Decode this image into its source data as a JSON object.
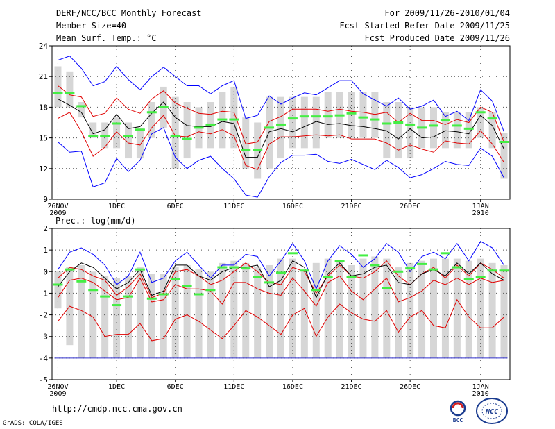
{
  "header": {
    "title": "DERF/NCC/BCC Monthly Forecast",
    "member_size": "Member Size=40",
    "variable": "Mean Surf. Temp.: °C",
    "period": "For 2009/11/26-2010/01/04",
    "started": "Fcst Started Refer Date 2009/11/25",
    "produced": "Fcst Produced Date 2009/11/26"
  },
  "precip_title": "Prec.: log(mm/d)",
  "footer": {
    "url": "http://cmdp.ncc.cma.gov.cn",
    "credit": "GrADS: COLA/IGES"
  },
  "logos": {
    "bcc": "BCC",
    "ncc": "NCC"
  },
  "colors": {
    "max_min": "#0000ff",
    "spread": "#e00000",
    "mean": "#000000",
    "obs": "#44ee44",
    "box": "#d6d6d6"
  },
  "chart_data": [
    {
      "type": "line",
      "title": "Mean Surf. Temp.: °C",
      "xlabel": "",
      "ylabel": "",
      "ylim": [
        9,
        24
      ],
      "yticks": [
        9,
        12,
        15,
        18,
        21,
        24
      ],
      "xlim": [
        0.5,
        39.5
      ],
      "xticks": [
        {
          "x": 0,
          "label": "26NOV",
          "sub": "2009"
        },
        {
          "x": 5,
          "label": "1DEC",
          "sub": ""
        },
        {
          "x": 10,
          "label": "6DEC",
          "sub": ""
        },
        {
          "x": 15,
          "label": "11DEC",
          "sub": ""
        },
        {
          "x": 20,
          "label": "16DEC",
          "sub": ""
        },
        {
          "x": 25,
          "label": "21DEC",
          "sub": ""
        },
        {
          "x": 30,
          "label": "26DEC",
          "sub": ""
        },
        {
          "x": 36,
          "label": "1JAN",
          "sub": "2010"
        }
      ],
      "grid": true,
      "boxes": {
        "low": [
          18,
          18,
          17,
          15,
          14,
          14,
          13,
          13,
          15,
          16,
          12,
          13,
          14,
          14,
          14,
          14,
          12,
          11,
          12,
          13,
          14,
          14,
          14,
          15,
          15,
          15,
          15,
          15,
          13,
          13,
          13,
          14,
          14,
          14,
          14,
          14,
          15,
          14,
          11
        ],
        "high": [
          22,
          21.5,
          18.5,
          16.5,
          16.5,
          17,
          16.5,
          16,
          18.5,
          20,
          19,
          18.5,
          18,
          18.5,
          19.5,
          20,
          17,
          16.5,
          19,
          19,
          19,
          19,
          19,
          19.5,
          19.5,
          19.5,
          19.5,
          19.5,
          18.5,
          18.5,
          18,
          18,
          18,
          17.5,
          17.5,
          17.5,
          18,
          17.5,
          15.5
        ]
      },
      "series": [
        {
          "name": "max",
          "color": "#0000ff",
          "values": [
            22.6,
            23,
            21.8,
            20.1,
            20.5,
            22,
            20.7,
            19.7,
            21,
            21.9,
            21,
            20.1,
            20.1,
            19.3,
            20.1,
            20.6,
            16.9,
            17.2,
            19.1,
            18.3,
            18.9,
            19.4,
            19.2,
            19.9,
            20.6,
            20.6,
            19.3,
            18.7,
            18.1,
            18.9,
            17.8,
            18.1,
            18.7,
            17.1,
            17.6,
            16.7,
            19.7,
            18.6,
            15.6
          ]
        },
        {
          "name": "upper",
          "color": "#e00000",
          "values": [
            20.1,
            19.2,
            19,
            17.1,
            17.4,
            18.9,
            17.8,
            17.4,
            18.8,
            19.6,
            18.4,
            17.9,
            17.4,
            17.3,
            17.6,
            17.5,
            14.4,
            14.6,
            16.6,
            17.1,
            17.8,
            17.8,
            17.8,
            17.6,
            17.8,
            17.6,
            17.5,
            17.3,
            17.5,
            16.5,
            17.4,
            16.7,
            16.7,
            16.3,
            16.8,
            16.5,
            18,
            17.5,
            14.6
          ]
        },
        {
          "name": "mean",
          "color": "#000000",
          "values": [
            18.8,
            18.2,
            17.5,
            15.4,
            15.8,
            17.3,
            15.9,
            16.1,
            17.4,
            18.5,
            17,
            16.2,
            16.1,
            16.1,
            16.6,
            16.4,
            13.1,
            13.1,
            15.6,
            15.9,
            15.6,
            16.1,
            16.6,
            16.3,
            16.4,
            16.2,
            16.1,
            15.9,
            15.7,
            14.9,
            15.9,
            15,
            15.1,
            15.7,
            15.6,
            15.4,
            17.2,
            16.2,
            13.9
          ]
        },
        {
          "name": "lower",
          "color": "#e00000",
          "values": [
            16.9,
            17.5,
            15.6,
            13.2,
            14.1,
            15.6,
            14.5,
            14.3,
            16,
            17.2,
            15.2,
            15.1,
            15.6,
            15.4,
            15.8,
            15.2,
            12.3,
            11.9,
            14.4,
            15.1,
            15.1,
            15.2,
            15.3,
            15.2,
            15.3,
            14.9,
            14.9,
            14.9,
            14.5,
            13.8,
            14.3,
            13.9,
            13.6,
            14.7,
            14.5,
            14.4,
            15.7,
            14.4,
            12.6
          ]
        },
        {
          "name": "min",
          "color": "#0000ff",
          "values": [
            14.6,
            13.6,
            13.7,
            10.2,
            10.6,
            13,
            11.7,
            12.8,
            15.4,
            16,
            13.1,
            12,
            12.8,
            13.2,
            12,
            11,
            9.4,
            9.2,
            11.2,
            12.6,
            13.3,
            13.3,
            13.4,
            12.7,
            12.5,
            12.9,
            12.4,
            11.9,
            12.8,
            12.1,
            11.1,
            11.4,
            12,
            12.7,
            12.4,
            12.3,
            14,
            13.2,
            11.1
          ]
        }
      ],
      "observed": [
        19.4,
        19.4,
        18.1,
        15.2,
        15.2,
        16.4,
        15.2,
        15.8,
        17.5,
        18,
        15.2,
        14.9,
        16,
        16.3,
        16.8,
        16.8,
        13.8,
        13.8,
        16,
        16.3,
        16.9,
        17.1,
        17.1,
        17.1,
        17.2,
        17.4,
        17,
        16.8,
        16.4,
        16.5,
        16.3,
        16,
        16.2,
        16.7,
        16.2,
        15.9,
        17.5,
        16.9,
        14.6
      ]
    },
    {
      "type": "line",
      "title": "Prec.: log(mm/d)",
      "xlabel": "",
      "ylabel": "",
      "ylim": [
        -5,
        2
      ],
      "yticks": [
        -5,
        -4,
        -3,
        -2,
        -1,
        0,
        1,
        2
      ],
      "xlim": [
        0.5,
        39.5
      ],
      "xticks": [
        {
          "x": 0,
          "label": "26NOV",
          "sub": "2009"
        },
        {
          "x": 5,
          "label": "1DEC",
          "sub": ""
        },
        {
          "x": 10,
          "label": "6DEC",
          "sub": ""
        },
        {
          "x": 15,
          "label": "11DEC",
          "sub": ""
        },
        {
          "x": 20,
          "label": "16DEC",
          "sub": ""
        },
        {
          "x": 25,
          "label": "21DEC",
          "sub": ""
        },
        {
          "x": 30,
          "label": "26DEC",
          "sub": ""
        },
        {
          "x": 36,
          "label": "1JAN",
          "sub": "2010"
        }
      ],
      "grid": true,
      "floor": -4,
      "boxes": {
        "low": [
          -1.7,
          -3.4,
          -4,
          -4,
          -4,
          -4,
          -4,
          -4,
          -4,
          -4,
          -4,
          -4,
          -4,
          -4,
          -4,
          -4,
          -4,
          -4,
          -4,
          -4,
          -4,
          -4,
          -4,
          -4,
          -4,
          -4,
          -4,
          -4,
          -4,
          -4,
          -4,
          -4,
          -4,
          -4,
          -4,
          -4,
          -4,
          -4,
          -4
        ],
        "high": [
          0,
          0.2,
          0.3,
          0,
          -0.2,
          -0.3,
          -0.2,
          0.2,
          -0.1,
          -0.1,
          0.2,
          0.3,
          0.1,
          0,
          0.4,
          0.5,
          0.4,
          0.2,
          0.3,
          0.6,
          0.6,
          0,
          0.4,
          0.6,
          0.5,
          0.3,
          0.6,
          0.7,
          0.6,
          0.2,
          0.4,
          0.5,
          0.6,
          0.6,
          0.6,
          0.5,
          0.6,
          0.4,
          0.3
        ]
      },
      "series": [
        {
          "name": "max",
          "color": "#0000ff",
          "values": [
            0.1,
            0.9,
            1.1,
            0.8,
            0.3,
            -0.6,
            -0.2,
            0.9,
            -0.5,
            -0.3,
            0.5,
            0.9,
            0.3,
            -0.3,
            0.3,
            0.3,
            0.8,
            0.7,
            -0.2,
            0.5,
            1.3,
            0.5,
            -0.8,
            0.5,
            1.2,
            0.8,
            0.2,
            0.6,
            1.3,
            0.9,
            0,
            0.7,
            0.9,
            0.6,
            1.3,
            0.5,
            1.4,
            1.1,
            0.3
          ]
        },
        {
          "name": "upper",
          "color": "#e00000",
          "values": [
            -0.3,
            0.2,
            0.1,
            -0.2,
            -0.4,
            -1.1,
            -0.7,
            -0.1,
            -1.2,
            -1,
            0,
            0.1,
            -0.2,
            -0.6,
            -0.4,
            0,
            0.4,
            0,
            -0.5,
            -0.6,
            0.2,
            0,
            -1,
            -0.2,
            0.3,
            -0.2,
            -0.3,
            0,
            0.5,
            -0.2,
            -0.6,
            -0.1,
            0.2,
            -0.3,
            0.3,
            -0.2,
            0.4,
            0.1,
            -0.3
          ]
        },
        {
          "name": "mean",
          "color": "#000000",
          "values": [
            -0.7,
            0,
            0.4,
            0.2,
            -0.3,
            -0.8,
            -0.5,
            0.1,
            -1.1,
            -0.9,
            0.3,
            0.3,
            -0.2,
            -0.4,
            0,
            0.2,
            0.2,
            0.3,
            -0.7,
            -0.4,
            0.5,
            0.2,
            -1.2,
            -0.1,
            0.4,
            -0.2,
            -0.1,
            0.2,
            0.3,
            -0.5,
            -0.6,
            -0.1,
            0.1,
            -0.2,
            0.4,
            -0.1,
            0.4,
            -0.1,
            -0.4
          ]
        },
        {
          "name": "lower",
          "color": "#e00000",
          "values": [
            -1.2,
            -0.4,
            -0.3,
            -0.5,
            -0.9,
            -1.3,
            -1.2,
            -0.3,
            -1.4,
            -1.3,
            -0.6,
            -0.8,
            -0.8,
            -0.9,
            -1.5,
            -0.5,
            -0.5,
            -0.8,
            -1,
            -1.1,
            -0.3,
            -0.9,
            -1.6,
            -0.5,
            -0.2,
            -0.9,
            -1.3,
            -0.8,
            -0.3,
            -1.4,
            -1.2,
            -0.9,
            -0.4,
            -0.6,
            -0.3,
            -0.6,
            -0.3,
            -0.5,
            -0.4
          ]
        },
        {
          "name": "min",
          "color": "#e00000",
          "values": [
            -2.3,
            -1.6,
            -1.8,
            -2.1,
            -3,
            -2.9,
            -2.9,
            -2.4,
            -3.2,
            -3.1,
            -2.2,
            -2,
            -2.3,
            -2.7,
            -3.1,
            -2.5,
            -1.8,
            -2.1,
            -2.5,
            -2.9,
            -2,
            -1.7,
            -3,
            -2.1,
            -1.5,
            -1.9,
            -2.2,
            -2.3,
            -1.8,
            -2.8,
            -2.1,
            -1.8,
            -2.5,
            -2.6,
            -1.3,
            -2.1,
            -2.6,
            -2.6,
            -2.1
          ]
        }
      ],
      "observed": [
        -0.6,
        0.1,
        -0.45,
        -0.85,
        -1.15,
        -1.55,
        -1.15,
        0.1,
        -1.25,
        -1.05,
        -0.35,
        -0.65,
        -1.05,
        -0.85,
        0.2,
        0.2,
        0.15,
        -0.25,
        -0.5,
        -0.05,
        0.85,
        0.05,
        -0.85,
        -0.25,
        0.5,
        -0.25,
        0.75,
        0.3,
        -0.75,
        0,
        0.15,
        0.35,
        0.1,
        0.85,
        0.2,
        -0.35,
        -0.25,
        0.05,
        0.05
      ]
    }
  ]
}
